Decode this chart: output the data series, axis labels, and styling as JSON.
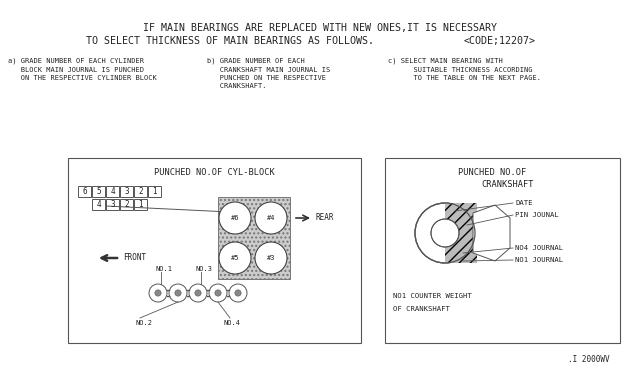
{
  "title_line1": "IF MAIN BEARINGS ARE REPLACED WITH NEW ONES,IT IS NECESSARY",
  "title_line2": "TO SELECT THICKNESS OF MAIN BEARINGS AS FOLLOWS.",
  "title_code": "<CODE;12207>",
  "sub_a": "a) GRADE NUMBER OF EACH CYLINDER\n   BLOCK MAIN JOURNAL IS PUNCHED\n   ON THE RESPECTIVE CYLINDER BLOCK",
  "sub_b": "b) GRADE NUMBER OF EACH\n   CRANKSHAFT MAIN JOURNAL IS\n   PUNCHED ON THE RESPECTIVE\n   CRANKSHAFT.",
  "sub_c": "c) SELECT MAIN BEARING WITH\n      SUITABLE THICKNESS ACCORDING\n      TO THE TABLE ON THE NEXT PAGE.",
  "box1_title": "PUNCHED NO.OF CYL-BLOCK",
  "box2_title_1": "PUNCHED NO.OF",
  "box2_title_2": "CRANKSHAFT",
  "footer": ".I 2000WV",
  "font_color": "#222222"
}
